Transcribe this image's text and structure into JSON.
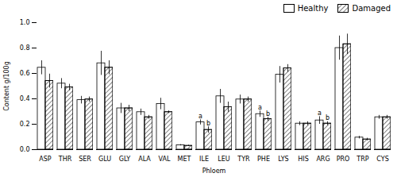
{
  "chart_data": {
    "type": "bar",
    "categories": [
      "ASP",
      "THR",
      "SER",
      "GLU",
      "GLY",
      "ALA",
      "VAL",
      "MET",
      "ILE",
      "LEU",
      "TYR",
      "PHE",
      "LYS",
      "HIS",
      "ARG",
      "PRO",
      "TRP",
      "CYS"
    ],
    "series": [
      {
        "name": "Healthy",
        "color": "#ffffff",
        "values": [
          0.645,
          0.52,
          0.39,
          0.68,
          0.325,
          0.295,
          0.36,
          0.035,
          0.215,
          0.42,
          0.395,
          0.28,
          0.59,
          0.205,
          0.23,
          0.8,
          0.095,
          0.255
        ],
        "errors": [
          0.055,
          0.04,
          0.03,
          0.095,
          0.04,
          0.025,
          0.045,
          0.005,
          0.02,
          0.055,
          0.035,
          0.025,
          0.065,
          0.015,
          0.03,
          0.095,
          0.01,
          0.015
        ]
      },
      {
        "name": "Damaged",
        "color": "#ffffff",
        "values": [
          0.54,
          0.49,
          0.395,
          0.645,
          0.325,
          0.255,
          0.295,
          0.03,
          0.155,
          0.335,
          0.395,
          0.24,
          0.64,
          0.205,
          0.205,
          0.83,
          0.08,
          0.255
        ],
        "errors": [
          0.055,
          0.025,
          0.02,
          0.055,
          0.025,
          0.015,
          0.01,
          0.005,
          0.025,
          0.04,
          0.02,
          0.015,
          0.03,
          0.015,
          0.015,
          0.08,
          0.01,
          0.015
        ]
      }
    ],
    "annotations": [
      {
        "category": "ILE",
        "series": "Healthy",
        "text": "a"
      },
      {
        "category": "ILE",
        "series": "Damaged",
        "text": "b"
      },
      {
        "category": "PHE",
        "series": "Healthy",
        "text": "a"
      },
      {
        "category": "PHE",
        "series": "Damaged",
        "text": "b"
      },
      {
        "category": "ARG",
        "series": "Healthy",
        "text": "a"
      },
      {
        "category": "ARG",
        "series": "Damaged",
        "text": "b"
      }
    ],
    "ylabel": "Content g/100g",
    "xlabel": "Phloem",
    "ylim": [
      0.0,
      1.0
    ],
    "yticks": [
      {
        "value": 0.0,
        "label": "0.0"
      },
      0.2,
      0.4,
      0.6,
      0.8,
      {
        "value": 1.0,
        "label": "1.0"
      }
    ],
    "legend": "upper right",
    "grid": false
  }
}
